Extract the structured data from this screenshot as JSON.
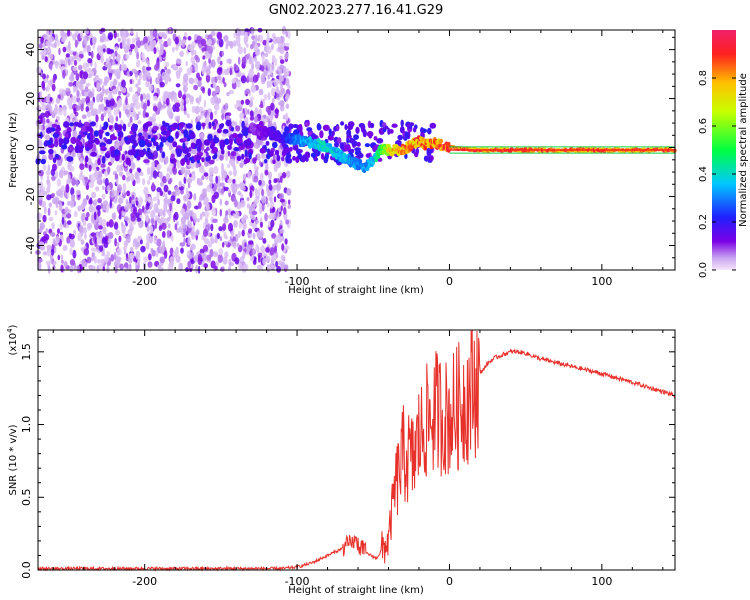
{
  "title": "GN02.2023.277.16.41.G29",
  "colors": {
    "snr_line": "#e8302a",
    "axis": "#000000"
  },
  "chart_data": [
    {
      "type": "heatmap",
      "xlabel": "Height of straight line (km)",
      "ylabel": "Frequency (Hz)",
      "xlim": [
        -270,
        148
      ],
      "ylim": [
        -50,
        48
      ],
      "x_ticks": [
        -200,
        -100,
        0,
        100
      ],
      "y_ticks": [
        -40,
        -20,
        0,
        20,
        40
      ],
      "colorbar": {
        "label": "Normalized spectral amplitude",
        "range": [
          0,
          1
        ],
        "ticks": [
          "0.0",
          "0.2",
          "0.4",
          "0.6",
          "0.8"
        ],
        "colormap": "rainbow"
      },
      "ridge": {
        "description_free": true,
        "x": [
          -130,
          -120,
          -110,
          -100,
          -90,
          -80,
          -70,
          -60,
          -55,
          -50,
          -45,
          -40,
          -30,
          -20,
          -15,
          -10,
          0,
          20,
          50,
          100,
          148
        ],
        "y": [
          8,
          6,
          4,
          3,
          2,
          0,
          -4,
          -7,
          -8,
          -5,
          -1,
          -1,
          -1,
          3,
          1,
          2,
          0,
          -1,
          -1,
          -1,
          -1
        ],
        "amplitude": [
          0.1,
          0.15,
          0.2,
          0.35,
          0.4,
          0.45,
          0.4,
          0.35,
          0.35,
          0.4,
          0.6,
          0.8,
          0.9,
          0.95,
          0.9,
          0.95,
          0.95,
          0.95,
          0.95,
          0.95,
          0.95
        ]
      },
      "noise_region": {
        "x": [
          -270,
          -105
        ],
        "y": [
          -50,
          48
        ]
      }
    },
    {
      "type": "line",
      "xlabel": "Height of straight line (km)",
      "ylabel": "SNR (10 * v/v)",
      "y_scale_label": "(x10",
      "y_scale_exp": "4",
      "y_scale_close": ")",
      "xlim": [
        -270,
        148
      ],
      "ylim": [
        0,
        1.65
      ],
      "x_ticks": [
        -200,
        -100,
        0,
        100
      ],
      "y_ticks": [
        "0.0",
        "0.5",
        "1.0",
        "1.5"
      ],
      "series": [
        {
          "x": [
            -270,
            -200,
            -150,
            -110,
            -100,
            -90,
            -80,
            -70,
            -62,
            -55,
            -48,
            -40,
            -36,
            -30,
            -24,
            -20,
            -16,
            -12,
            -8,
            -4,
            0,
            4,
            8,
            12,
            16,
            20,
            25,
            30,
            35,
            40,
            45,
            50,
            60,
            80,
            100,
            120,
            148
          ],
          "y": [
            0.01,
            0.01,
            0.01,
            0.01,
            0.02,
            0.05,
            0.1,
            0.15,
            0.2,
            0.12,
            0.08,
            0.2,
            0.55,
            0.8,
            0.75,
            0.9,
            1.0,
            1.05,
            1.1,
            1.05,
            1.05,
            1.1,
            1.15,
            1.2,
            1.25,
            1.35,
            1.42,
            1.46,
            1.48,
            1.5,
            1.5,
            1.49,
            1.45,
            1.4,
            1.35,
            1.29,
            1.2
          ]
        }
      ]
    }
  ]
}
